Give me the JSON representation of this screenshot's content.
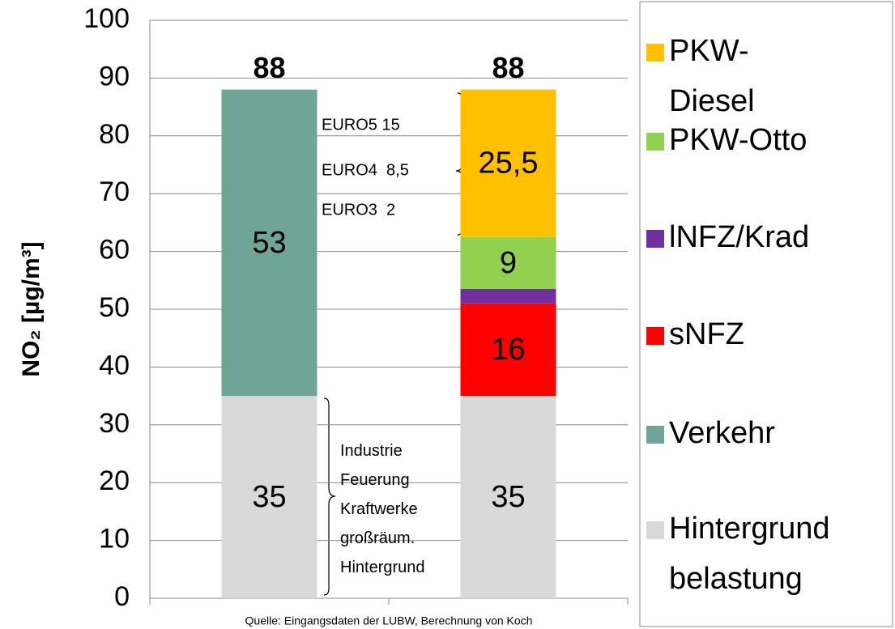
{
  "chart_data": {
    "type": "stacked_bar",
    "y_label": "NO₂ [µg/m³]",
    "categories": [
      null,
      null
    ],
    "series": [
      {
        "name": "Hintergrund\nbelastung",
        "color": "#d9d9d9",
        "values": [
          35,
          35
        ],
        "value_labels": [
          "35",
          "35"
        ]
      },
      {
        "name": "Verkehr",
        "color": "#6fa597",
        "values": [
          53,
          null
        ],
        "value_labels": [
          "53",
          null
        ]
      },
      {
        "name": "sNFZ",
        "color": "#ff0000",
        "values": [
          null,
          16
        ],
        "value_labels": [
          null,
          "16"
        ]
      },
      {
        "name": "lNFZ/Krad",
        "color": "#7030a0",
        "values": [
          null,
          2.5
        ],
        "value_labels": [
          null,
          null
        ]
      },
      {
        "name": "PKW-Otto",
        "color": "#92d050",
        "values": [
          null,
          9
        ],
        "value_labels": [
          null,
          "9"
        ]
      },
      {
        "name": "PKW-\nDiesel",
        "color": "#ffc000",
        "values": [
          null,
          25.5
        ],
        "value_labels": [
          null,
          "25,5"
        ]
      }
    ],
    "totals": [
      88,
      88
    ],
    "ylim": [
      0,
      100
    ],
    "yticks": [
      0,
      10,
      20,
      30,
      40,
      50,
      60,
      70,
      80,
      90,
      100
    ],
    "grid": true,
    "annotations": [
      "EURO5 15",
      "EURO4  8,5",
      "EURO3  2",
      "Industrie\nFeuerung\nKraftwerke\ngroßräum.\nHintergrund"
    ],
    "source": "Quelle: Eingangsdaten der LUBW, Berechnung von Koch"
  }
}
